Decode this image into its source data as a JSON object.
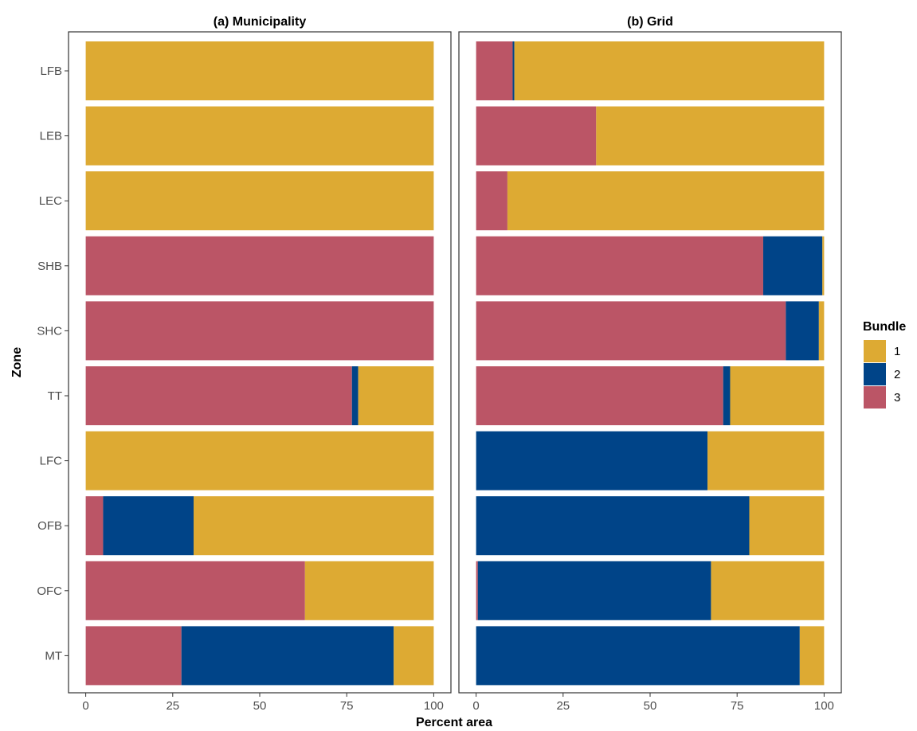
{
  "chart_data": {
    "type": "bar",
    "orientation": "horizontal",
    "stacked": true,
    "xlabel": "Percent area",
    "ylabel": "Zone",
    "xlim": [
      0,
      100
    ],
    "x_ticks": [
      "0",
      "25",
      "50",
      "75",
      "100"
    ],
    "categories": [
      "LFB",
      "LEB",
      "LEC",
      "SHB",
      "SHC",
      "TT",
      "LFC",
      "OFB",
      "OFC",
      "MT"
    ],
    "legend": {
      "title": "Bundle",
      "position": "right",
      "entries": [
        {
          "label": "1",
          "color": "#DDAA33"
        },
        {
          "label": "2",
          "color": "#004488"
        },
        {
          "label": "3",
          "color": "#BB5566"
        }
      ]
    },
    "stack_order": [
      "3",
      "2",
      "1"
    ],
    "panels": [
      {
        "title": "(a) Municipality",
        "series": [
          {
            "name": "3",
            "values": [
              0,
              0,
              0,
              100,
              100,
              76.5,
              0,
              5,
              63,
              27.5
            ]
          },
          {
            "name": "2",
            "values": [
              0,
              0,
              0,
              0,
              0,
              1.8,
              0,
              26,
              0,
              61
            ]
          },
          {
            "name": "1",
            "values": [
              100,
              100,
              100,
              0,
              0,
              21.7,
              100,
              69,
              37,
              11.5
            ]
          }
        ]
      },
      {
        "title": "(b) Grid",
        "series": [
          {
            "name": "3",
            "values": [
              10.5,
              34.5,
              9,
              82.5,
              89,
              71,
              0,
              0,
              0.5,
              0
            ]
          },
          {
            "name": "2",
            "values": [
              0.5,
              0,
              0,
              17,
              9.5,
              2,
              66.5,
              78.5,
              67,
              93
            ]
          },
          {
            "name": "1",
            "values": [
              89,
              65.5,
              91,
              0.5,
              1.5,
              27,
              33.5,
              21.5,
              32.5,
              7
            ]
          }
        ]
      }
    ]
  }
}
